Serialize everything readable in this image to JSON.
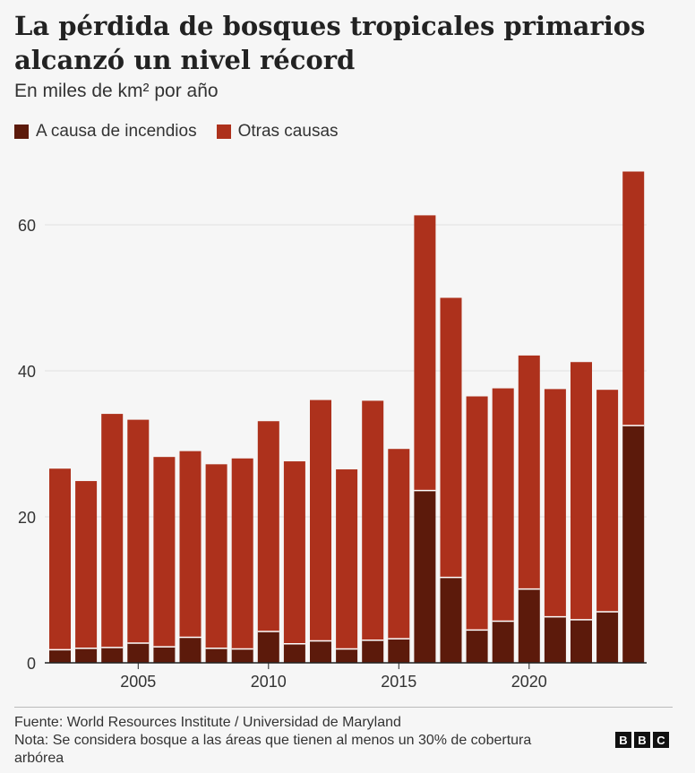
{
  "title": "La pérdida de bosques tropicales primarios alcanzó un nivel récord",
  "subtitle": "En miles de km² por año",
  "legend": [
    {
      "label": "A causa de incendios",
      "color": "#5c1a0b"
    },
    {
      "label": "Otras causas",
      "color": "#ad311c"
    }
  ],
  "colors": {
    "fire": "#5c1a0b",
    "other": "#ad311c",
    "grid": "#e0e0e0",
    "axis": "#222222"
  },
  "chart_data": {
    "type": "bar",
    "stacked": true,
    "title": "La pérdida de bosques tropicales primarios alcanzó un nivel récord",
    "ylabel": "En miles de km² por año",
    "xlabel": "",
    "ylim": [
      0,
      70
    ],
    "yticks": [
      0,
      20,
      40,
      60
    ],
    "xticks": [
      2005,
      2010,
      2015,
      2020
    ],
    "x": [
      2002,
      2003,
      2004,
      2005,
      2006,
      2007,
      2008,
      2009,
      2010,
      2011,
      2012,
      2013,
      2014,
      2015,
      2016,
      2017,
      2018,
      2019,
      2020,
      2021,
      2022,
      2023,
      2024
    ],
    "series": [
      {
        "name": "A causa de incendios",
        "values": [
          1.8,
          2.0,
          2.1,
          2.7,
          2.2,
          3.5,
          2.0,
          1.9,
          4.3,
          2.6,
          3.0,
          1.9,
          3.1,
          3.3,
          23.6,
          11.7,
          4.5,
          5.7,
          10.1,
          6.3,
          5.9,
          7.0,
          32.5
        ]
      },
      {
        "name": "Otras causas",
        "values": [
          24.8,
          22.9,
          32.0,
          30.6,
          26.0,
          25.5,
          25.2,
          26.1,
          28.8,
          25.0,
          33.0,
          24.6,
          32.8,
          26.0,
          37.7,
          38.3,
          32.0,
          31.9,
          32.0,
          31.2,
          35.3,
          30.4,
          34.8
        ]
      }
    ]
  },
  "footer": {
    "source": "Fuente: World Resources Institute / Universidad de Maryland",
    "note": "Nota: Se considera bosque a las áreas que tienen al menos un 30% de cobertura arbórea"
  },
  "logo": {
    "letters": [
      "B",
      "B",
      "C"
    ]
  }
}
